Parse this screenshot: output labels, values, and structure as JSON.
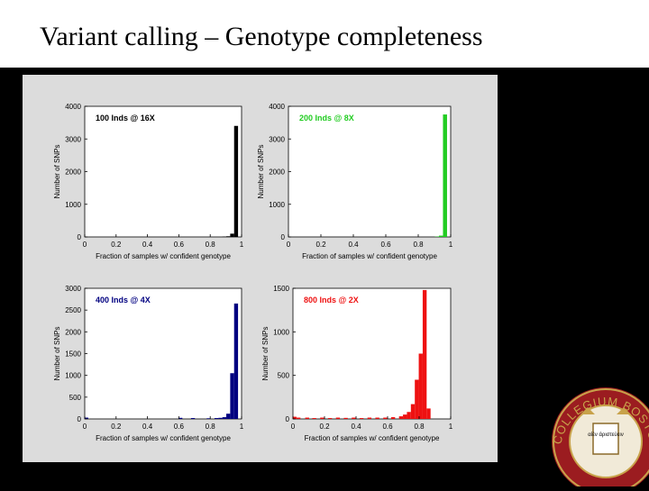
{
  "slide": {
    "title": "Variant calling – Genotype completeness"
  },
  "colors": {
    "background": "#000000",
    "title_band": "#ffffff",
    "figure_background": "#dcdcdc",
    "seal_red": "#9b1c20",
    "seal_gold": "#c8a24a"
  },
  "chart_data": [
    {
      "type": "bar",
      "title": "100 Inds @ 16X",
      "title_color": "#000000",
      "bar_color": "#000000",
      "xlabel": "Fraction of samples w/ confident genotype",
      "ylabel": "Number of SNPs",
      "xlim": [
        0,
        1
      ],
      "ylim": [
        0,
        4000
      ],
      "xticks": [
        "0",
        "0.2",
        "0.4",
        "0.6",
        "0.8",
        "1"
      ],
      "yticks": [
        "0",
        "1000",
        "2000",
        "3000",
        "4000"
      ],
      "x": [
        0.89,
        0.915,
        0.94,
        0.965
      ],
      "values": [
        10,
        20,
        100,
        3400
      ]
    },
    {
      "type": "bar",
      "title": "200 Inds @ 8X",
      "title_color": "#22cc22",
      "bar_color": "#22cc22",
      "xlabel": "Fraction of samples w/ confident genotype",
      "ylabel": "Number of SNPs",
      "xlim": [
        0,
        1
      ],
      "ylim": [
        0,
        4000
      ],
      "xticks": [
        "0",
        "0.2",
        "0.4",
        "0.6",
        "0.8",
        "1"
      ],
      "yticks": [
        "0",
        "1000",
        "2000",
        "3000",
        "4000"
      ],
      "x": [
        0.915,
        0.94,
        0.965
      ],
      "values": [
        10,
        40,
        3750
      ]
    },
    {
      "type": "bar",
      "title": "400 Inds @ 4X",
      "title_color": "#000080",
      "bar_color": "#000080",
      "xlabel": "Fraction of samples w/ confident genotype",
      "ylabel": "Number of SNPs",
      "xlim": [
        0,
        1
      ],
      "ylim": [
        0,
        3000
      ],
      "xticks": [
        "0",
        "0.2",
        "0.4",
        "0.6",
        "0.8",
        "1"
      ],
      "yticks": [
        "0",
        "500",
        "1000",
        "1500",
        "2000",
        "2500",
        "3000"
      ],
      "x": [
        0.01,
        0.61,
        0.69,
        0.79,
        0.84,
        0.865,
        0.89,
        0.915,
        0.94,
        0.965
      ],
      "values": [
        30,
        25,
        20,
        15,
        20,
        25,
        40,
        120,
        1050,
        2650
      ]
    },
    {
      "type": "bar",
      "title": "800 Inds @ 2X",
      "title_color": "#ee1111",
      "bar_color": "#ee1111",
      "xlabel": "Fraction of samples w/ confident genotype",
      "ylabel": "Number of SNPs",
      "xlim": [
        0,
        1
      ],
      "ylim": [
        0,
        1500
      ],
      "xticks": [
        "0",
        "0.2",
        "0.4",
        "0.6",
        "0.8",
        "1"
      ],
      "yticks": [
        "0",
        "500",
        "1000",
        "1500"
      ],
      "x": [
        0.01,
        0.035,
        0.09,
        0.135,
        0.185,
        0.235,
        0.285,
        0.335,
        0.385,
        0.435,
        0.485,
        0.535,
        0.585,
        0.635,
        0.685,
        0.71,
        0.735,
        0.76,
        0.785,
        0.81,
        0.835,
        0.86
      ],
      "values": [
        25,
        15,
        15,
        10,
        15,
        10,
        15,
        12,
        15,
        10,
        15,
        15,
        15,
        20,
        30,
        50,
        80,
        170,
        450,
        750,
        1480,
        120
      ]
    }
  ],
  "seal": {
    "text": "COLLEGIUM BOSTONIENSE",
    "label": "αἰὲν ἀριστεύειν"
  }
}
